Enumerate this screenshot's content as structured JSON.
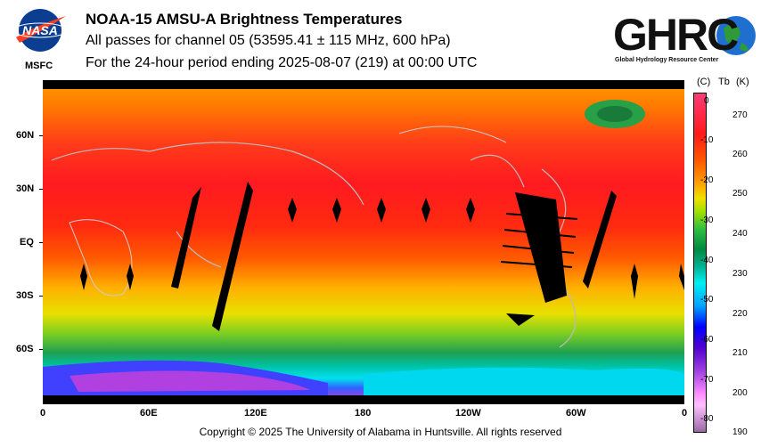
{
  "header": {
    "title": "NOAA-15 AMSU-A Brightness Temperatures",
    "line2": "All passes for channel 05 (53595.41 ± 115 MHz, 600 hPa)",
    "line3": "For the 24-hour period ending 2025-08-07 (219) at 00:00 UTC"
  },
  "logos": {
    "nasa_text": "NASA",
    "msfc_text": "MSFC",
    "ghrc_text": "GHRC",
    "ghrc_sub": "Global Hydrology Resource Center"
  },
  "map": {
    "lat_labels": [
      "60N",
      "30N",
      "EQ",
      "30S",
      "60S"
    ],
    "lon_labels": [
      "0",
      "60E",
      "120E",
      "180",
      "120W",
      "60W",
      "0"
    ]
  },
  "colorbar": {
    "unit_c": "(C)",
    "unit_tb": "Tb",
    "unit_k": "(K)",
    "celsius_ticks": [
      "0",
      "-10",
      "-20",
      "-30",
      "-40",
      "-50",
      "-60",
      "-70",
      "-80"
    ],
    "kelvin_ticks": [
      "270",
      "260",
      "250",
      "240",
      "230",
      "220",
      "210",
      "200",
      "190"
    ],
    "colors": {
      "warm": "#ff1a1a",
      "mid": "#30c040",
      "cold": "#0000ff",
      "coldest": "#ff90ff"
    }
  },
  "footer": {
    "copyright": "Copyright © 2025 The University of Alabama in Huntsville.  All rights reserved"
  }
}
